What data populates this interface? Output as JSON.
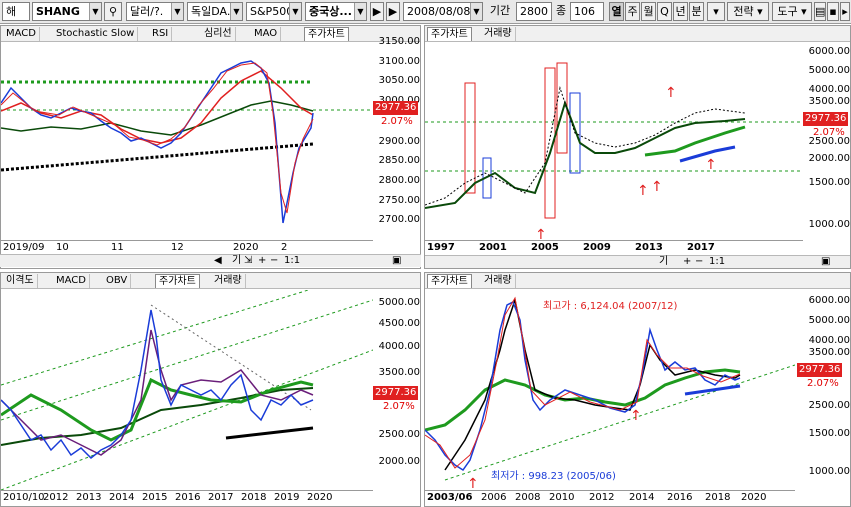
{
  "toolbar": {
    "item1": "해",
    "symbol": "SHANG",
    "currency": "달러/?.",
    "country": "독일DA..",
    "index": "S&P500",
    "region": "중국상...",
    "date": "2008/08/08",
    "period_label": "기간",
    "period_value": "2800",
    "count_label": "종",
    "count_value": "106",
    "freq_year": "열",
    "freq_week": "주",
    "freq_month": "월",
    "freq_quarter": "Q",
    "freq_year2": "년",
    "freq_min": "분",
    "strategy": "전략",
    "tools": "도구"
  },
  "panels": {
    "top_left": {
      "tabs": [
        "MACD",
        "Stochastic Slow",
        "RSI",
        "심리선",
        "MAO",
        "주가차트"
      ],
      "yticks": [
        "3150.00",
        "3100.00",
        "3050.00",
        "3000.00",
        "2950.00",
        "2900.00",
        "2850.00",
        "2800.00",
        "2750.00",
        "2700.00"
      ],
      "xticks": [
        "2019/09",
        "10",
        "11",
        "12",
        "2020",
        "2"
      ],
      "price": "2977.36",
      "change": "2.07%"
    },
    "top_right": {
      "tabs": [
        "주가차트",
        "거래량"
      ],
      "yticks": [
        "6000.00",
        "5000.00",
        "4000.00",
        "3500.00",
        "3000.00",
        "2500.00",
        "2000.00",
        "1500.00",
        "1000.00"
      ],
      "xticks": [
        "1997",
        "2001",
        "2005",
        "2009",
        "2013",
        "2017"
      ],
      "price": "2977.36",
      "change": "2.07%"
    },
    "bottom_left": {
      "tabs": [
        "이격도",
        "MACD",
        "OBV",
        "주가차트",
        "거래량"
      ],
      "yticks": [
        "5000.00",
        "4500.00",
        "4000.00",
        "3500.00",
        "3000.00",
        "2500.00",
        "2000.00"
      ],
      "xticks": [
        "2010/10",
        "2012",
        "2013",
        "2014",
        "2015",
        "2016",
        "2017",
        "2018",
        "2019",
        "2020"
      ],
      "price": "2977.36",
      "change": "2.07%"
    },
    "bottom_right": {
      "tabs": [
        "주가차트",
        "거래량"
      ],
      "yticks": [
        "6000.00",
        "5000.00",
        "4000.00",
        "3500.00",
        "3000.00",
        "2500.00",
        "2000.00",
        "1500.00",
        "1000.00"
      ],
      "xticks": [
        "2003/06",
        "2006",
        "2008",
        "2010",
        "2012",
        "2014",
        "2016",
        "2018",
        "2020"
      ],
      "price": "2977.36",
      "change": "2.07%",
      "annotation_high": "최고가 : 6,124.04 (2007/12)",
      "annotation_low": "최저가 : 998.23 (2005/06)"
    }
  },
  "scrollbar": {
    "ratio": "1:1",
    "icon_label": "기"
  },
  "colors": {
    "up": "#e02020",
    "down": "#1a3cd8",
    "ma_green": "#1e9a1e",
    "ma_dark": "#0a4a0a",
    "badge": "#e02020"
  }
}
